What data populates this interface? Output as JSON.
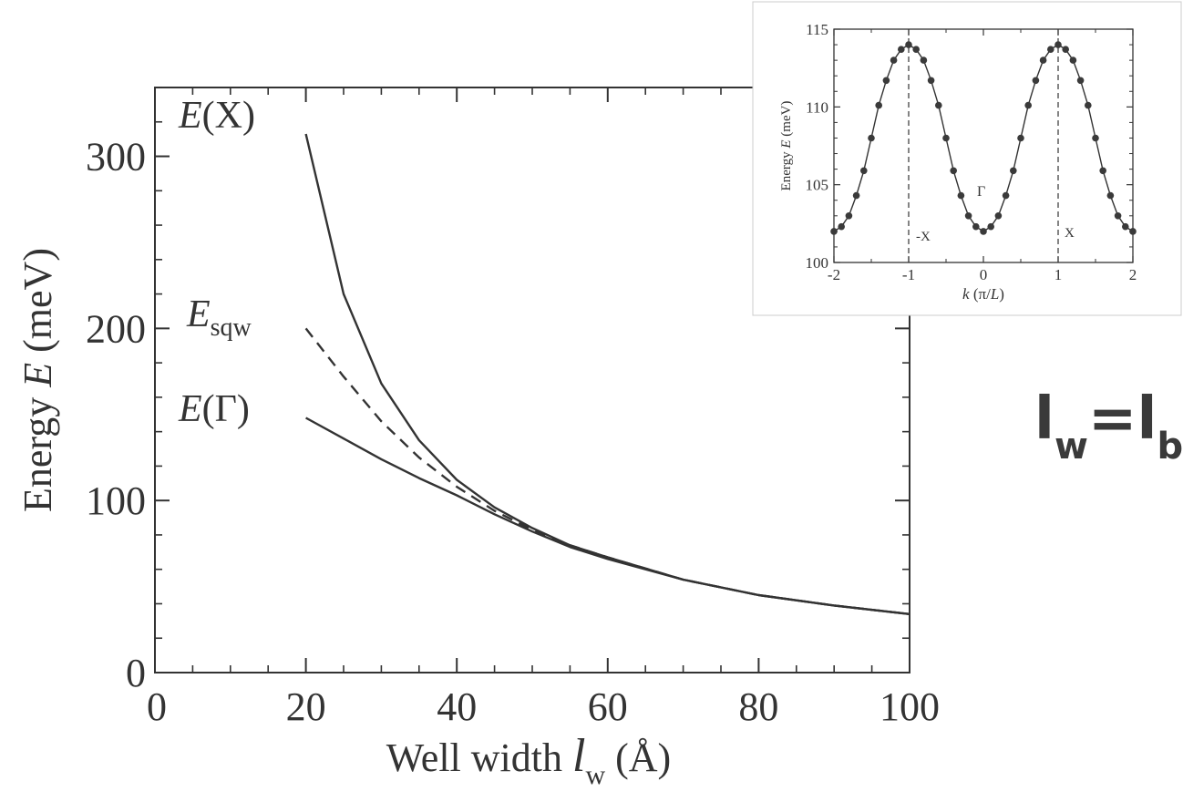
{
  "chart_data": [
    {
      "type": "line",
      "xlabel": {
        "prefix": "Well width ",
        "var": "l",
        "sub": "w",
        "suffix": " (Å)"
      },
      "ylabel": {
        "prefix": "Energy ",
        "var": "E",
        "suffix": " (meV)"
      },
      "xlim": [
        0,
        100
      ],
      "ylim": [
        0,
        340
      ],
      "xticks": [
        0,
        20,
        40,
        60,
        80,
        100
      ],
      "yticks": [
        0,
        100,
        200,
        300
      ],
      "grid": false,
      "series": [
        {
          "name": "E(X)",
          "label": {
            "var": "E",
            "rest": "(X)"
          },
          "style": "solid",
          "x": [
            20,
            25,
            30,
            35,
            40,
            45,
            50,
            55,
            60,
            70,
            80,
            90,
            100
          ],
          "y": [
            313,
            220,
            168,
            135,
            112,
            96,
            84,
            74,
            67,
            54,
            45,
            39,
            34
          ]
        },
        {
          "name": "E_sqw",
          "label": {
            "var": "E",
            "sub": "sqw"
          },
          "style": "dashed",
          "x": [
            20,
            25,
            30,
            35,
            40,
            45,
            50,
            55,
            60,
            70,
            80,
            90,
            100
          ],
          "y": [
            200,
            172,
            146,
            125,
            108,
            94,
            83,
            74,
            67,
            54,
            45,
            39,
            34
          ]
        },
        {
          "name": "E(Γ)",
          "label": {
            "var": "E",
            "rest": "(Γ)"
          },
          "style": "solid",
          "x": [
            20,
            25,
            30,
            35,
            40,
            45,
            50,
            55,
            60,
            70,
            80,
            90,
            100
          ],
          "y": [
            148,
            136,
            124,
            113,
            103,
            92,
            82,
            73,
            66,
            54,
            45,
            39,
            34
          ]
        }
      ]
    },
    {
      "type": "line",
      "inset": true,
      "xlabel": {
        "var": "k",
        "suffix": " (π/",
        "var2": "L",
        "suffix2": ")"
      },
      "ylabel": {
        "prefix": "Energy ",
        "var": "E",
        "suffix": " (meV)"
      },
      "xlim": [
        -2,
        2
      ],
      "ylim": [
        100,
        115
      ],
      "xticks": [
        -2,
        -1,
        0,
        1,
        2
      ],
      "yticks": [
        100,
        105,
        110,
        115
      ],
      "grid": false,
      "annotations": [
        "-X",
        "X",
        "Γ"
      ],
      "vlines": [
        -1,
        1
      ],
      "series": [
        {
          "x": [
            -2,
            -1.9,
            -1.8,
            -1.7,
            -1.6,
            -1.5,
            -1.4,
            -1.3,
            -1.2,
            -1.1,
            -1,
            -0.9,
            -0.8,
            -0.7,
            -0.6,
            -0.5,
            -0.4,
            -0.3,
            -0.2,
            -0.1,
            0,
            0.1,
            0.2,
            0.3,
            0.4,
            0.5,
            0.6,
            0.7,
            0.8,
            0.9,
            1,
            1.1,
            1.2,
            1.3,
            1.4,
            1.5,
            1.6,
            1.7,
            1.8,
            1.9,
            2
          ],
          "y": [
            102.0,
            102.3,
            103.0,
            104.3,
            105.9,
            108.0,
            110.1,
            111.7,
            113.0,
            113.7,
            114.0,
            113.7,
            113.0,
            111.7,
            110.1,
            108.0,
            105.9,
            104.3,
            103.0,
            102.3,
            102.0,
            102.3,
            103.0,
            104.3,
            105.9,
            108.0,
            110.1,
            111.7,
            113.0,
            113.7,
            114.0,
            113.7,
            113.0,
            111.7,
            110.1,
            108.0,
            105.9,
            104.3,
            103.0,
            102.3,
            102.0
          ]
        }
      ]
    }
  ],
  "note": {
    "l1": "l",
    "s1": "w",
    "eq": "=",
    "l2": "l",
    "s2": "b"
  },
  "colors": {
    "line": "#333333",
    "marker": "#3a3a3a",
    "note": "#3a3a3a"
  }
}
